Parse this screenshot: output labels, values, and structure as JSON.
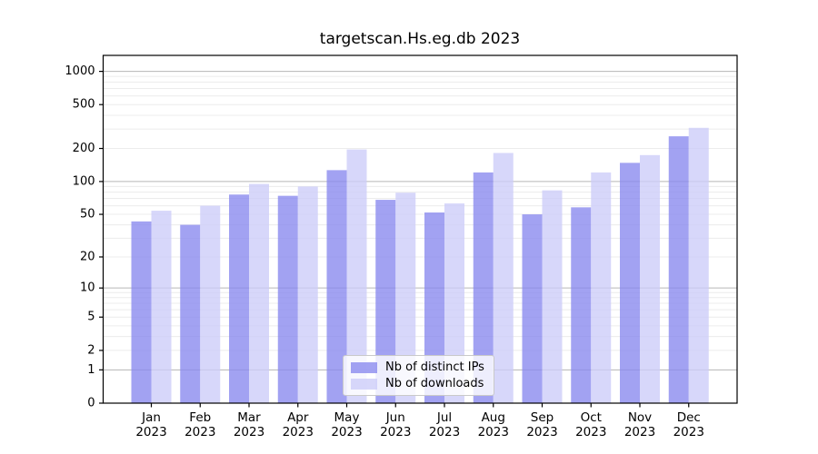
{
  "chart_data": {
    "type": "bar",
    "title": "targetscan.Hs.eg.db 2023",
    "categories": [
      {
        "month": "Jan",
        "year": "2023"
      },
      {
        "month": "Feb",
        "year": "2023"
      },
      {
        "month": "Mar",
        "year": "2023"
      },
      {
        "month": "Apr",
        "year": "2023"
      },
      {
        "month": "May",
        "year": "2023"
      },
      {
        "month": "Jun",
        "year": "2023"
      },
      {
        "month": "Jul",
        "year": "2023"
      },
      {
        "month": "Aug",
        "year": "2023"
      },
      {
        "month": "Sep",
        "year": "2023"
      },
      {
        "month": "Oct",
        "year": "2023"
      },
      {
        "month": "Nov",
        "year": "2023"
      },
      {
        "month": "Dec",
        "year": "2023"
      }
    ],
    "series": [
      {
        "name": "Nb of distinct IPs",
        "color": "#8888ee",
        "values": [
          43,
          40,
          76,
          74,
          127,
          68,
          52,
          121,
          50,
          58,
          148,
          258
        ]
      },
      {
        "name": "Nb of downloads",
        "color": "#ccccf8",
        "values": [
          54,
          60,
          95,
          90,
          196,
          79,
          63,
          182,
          83,
          121,
          174,
          308
        ]
      }
    ],
    "y_axis": {
      "ticks": [
        0,
        1,
        2,
        5,
        10,
        20,
        50,
        100,
        200,
        500,
        1000
      ],
      "scale": "log10(1+x)",
      "label": ""
    },
    "x_axis": {
      "label": ""
    },
    "grid": {
      "on": true,
      "major_lines": [
        1,
        10,
        100,
        1000
      ],
      "minor_lines": [
        2,
        3,
        4,
        5,
        6,
        7,
        8,
        9,
        20,
        30,
        40,
        50,
        60,
        70,
        80,
        90,
        200,
        300,
        400,
        500,
        600,
        700,
        800,
        900
      ]
    },
    "legend_position": "inside-bottom-center",
    "colors": {
      "frame": "#000000",
      "grid_major": "#b6b6b6",
      "grid_minor": "#ececec",
      "tick_text": "#000000",
      "background": "#ffffff"
    }
  }
}
